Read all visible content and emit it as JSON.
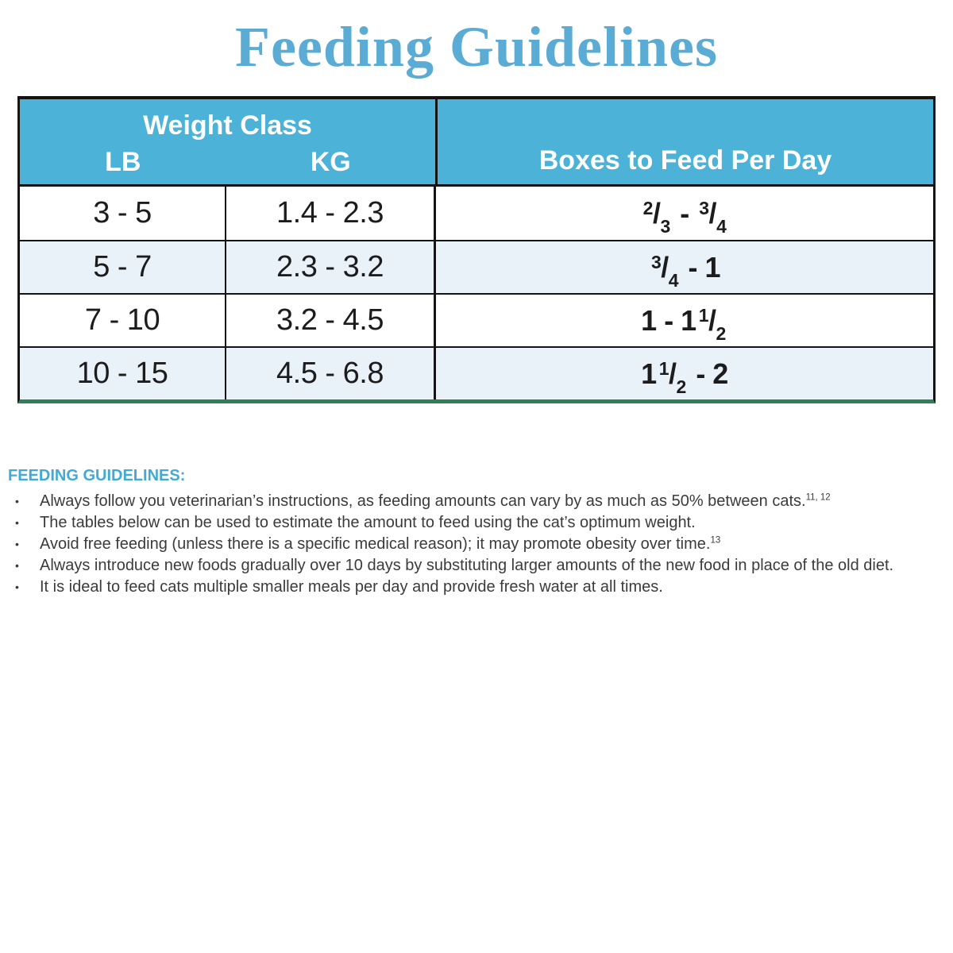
{
  "title": "Feeding Guidelines",
  "colors": {
    "title_blue": "#5BACD4",
    "header_blue": "#4CB2D7",
    "row_alt": "#E9F2F9",
    "border_black": "#141414",
    "border_green": "#2E8155",
    "heading_blue": "#41AAD5",
    "body_text": "#3B3B3B",
    "table_text": "#1C1C1C"
  },
  "table": {
    "header": {
      "weight_class": "Weight Class",
      "lb": "LB",
      "kg": "KG",
      "boxes": "Boxes to Feed Per Day"
    },
    "rows": [
      {
        "lb": "3 - 5",
        "kg": "1.4 - 2.3",
        "boxes_text": "2/3 - 3/4",
        "boxes": [
          {
            "type": "frac",
            "n": "2",
            "d": "3"
          },
          {
            "type": "text",
            "t": " - "
          },
          {
            "type": "frac",
            "n": "3",
            "d": "4"
          }
        ]
      },
      {
        "lb": "5 - 7",
        "kg": "2.3 - 3.2",
        "boxes_text": "3/4 - 1",
        "boxes": [
          {
            "type": "frac",
            "n": "3",
            "d": "4"
          },
          {
            "type": "text",
            "t": " - 1"
          }
        ]
      },
      {
        "lb": "7 - 10",
        "kg": "3.2 - 4.5",
        "boxes_text": "1 - 1 1/2",
        "boxes": [
          {
            "type": "text",
            "t": "1 - 1"
          },
          {
            "type": "frac",
            "n": "1",
            "d": "2"
          }
        ]
      },
      {
        "lb": "10 - 15",
        "kg": "4.5 - 6.8",
        "boxes_text": "1 1/2 - 2",
        "boxes": [
          {
            "type": "text",
            "t": "1"
          },
          {
            "type": "frac",
            "n": "1",
            "d": "2"
          },
          {
            "type": "text",
            "t": " - 2"
          }
        ]
      }
    ]
  },
  "guidelines": {
    "heading": "FEEDING GUIDELINES:",
    "bullet_char": "•",
    "bullets": [
      {
        "text": "Always follow you veterinarian’s instructions, as feeding amounts can vary by as much as 50% between cats.",
        "sup": "11, 12"
      },
      {
        "text": "The tables below can be used to estimate the amount to feed using the cat’s optimum weight.",
        "sup": ""
      },
      {
        "text": "Avoid free feeding (unless there is a specific medical reason); it may promote obesity over time.",
        "sup": "13"
      },
      {
        "text": "Always introduce new foods gradually over 10 days by substituting larger amounts of the new food in place of the old diet.",
        "sup": ""
      },
      {
        "text": "It is ideal to feed cats multiple smaller meals per day and provide fresh water at all times.",
        "sup": ""
      }
    ]
  }
}
